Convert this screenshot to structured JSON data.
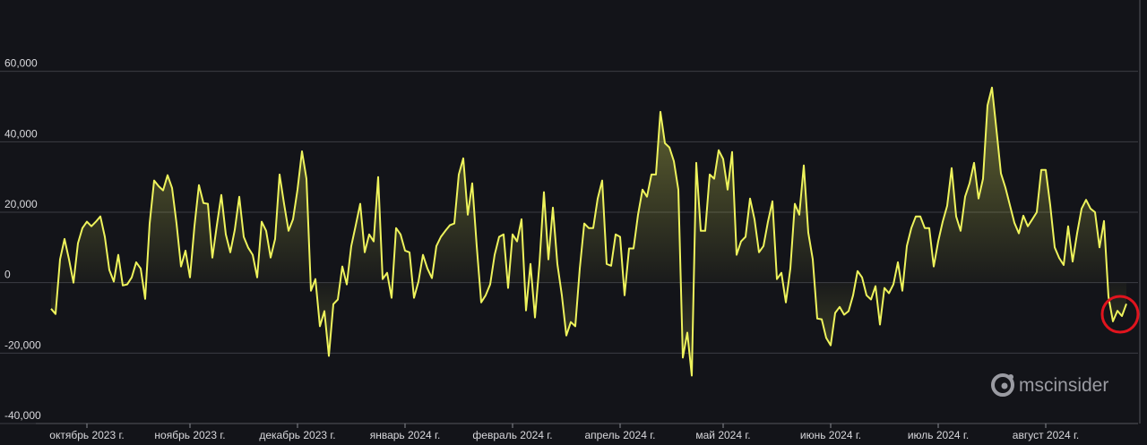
{
  "chart_data": {
    "type": "line",
    "watermark": "mscinsider",
    "color": "#eef35c",
    "grid": true,
    "ylim": [
      -40000,
      80000
    ],
    "yticks": [
      {
        "value": -40000,
        "label": "-40,000"
      },
      {
        "value": -20000,
        "label": "-20,000"
      },
      0,
      {
        "value": 20000,
        "label": "20,000"
      },
      {
        "value": 40000,
        "label": "40,000"
      },
      {
        "value": 60000,
        "label": "60,000"
      }
    ],
    "categories": [
      null,
      null,
      null,
      null,
      null,
      null,
      null,
      null,
      "октябрь 2023 г.",
      null,
      null,
      null,
      null,
      null,
      null,
      null,
      null,
      null,
      null,
      null,
      null,
      null,
      null,
      null,
      null,
      null,
      null,
      null,
      null,
      null,
      null,
      "ноябрь 2023 г.",
      null,
      null,
      null,
      null,
      null,
      null,
      null,
      null,
      null,
      null,
      null,
      null,
      null,
      null,
      null,
      null,
      null,
      null,
      null,
      null,
      null,
      null,
      null,
      "декабрь 2023 г.",
      null,
      null,
      null,
      null,
      null,
      null,
      null,
      null,
      null,
      null,
      null,
      null,
      null,
      null,
      null,
      null,
      null,
      null,
      null,
      null,
      null,
      null,
      null,
      "январь 2024 г.",
      null,
      null,
      null,
      null,
      null,
      null,
      null,
      null,
      null,
      null,
      null,
      null,
      null,
      null,
      null,
      null,
      null,
      null,
      null,
      null,
      null,
      null,
      null,
      "февраль 2024 г.",
      null,
      null,
      null,
      null,
      null,
      null,
      null,
      null,
      null,
      null,
      null,
      null,
      null,
      null,
      null,
      null,
      null,
      null,
      null,
      null,
      null,
      null,
      null,
      "апрель 2024 г.",
      null,
      null,
      null,
      null,
      null,
      null,
      null,
      null,
      null,
      null,
      null,
      null,
      null,
      null,
      null,
      null,
      null,
      null,
      null,
      null,
      null,
      null,
      "май 2024 г.",
      null,
      null,
      null,
      null,
      null,
      null,
      null,
      null,
      null,
      null,
      null,
      null,
      null,
      null,
      null,
      null,
      null,
      null,
      null,
      null,
      null,
      null,
      null,
      "июнь 2024 г.",
      null,
      null,
      null,
      null,
      null,
      null,
      null,
      null,
      null,
      null,
      null,
      null,
      null,
      null,
      null,
      null,
      null,
      null,
      null,
      null,
      null,
      null,
      null,
      "июль 2024 г.",
      null,
      null,
      null,
      null,
      null,
      null,
      null,
      null,
      null,
      null,
      null,
      null,
      null,
      null,
      null,
      null,
      null,
      null,
      null,
      null,
      null,
      null,
      null,
      "август 2024 г.",
      null,
      null,
      null,
      null,
      null,
      null,
      null,
      null,
      null,
      null,
      null,
      null,
      null,
      null,
      null,
      null,
      null,
      null
    ],
    "values": [
      -7400,
      -8900,
      6600,
      12400,
      6600,
      0,
      11200,
      15500,
      17300,
      16000,
      17300,
      18800,
      13000,
      3600,
      300,
      7900,
      -800,
      -500,
      1500,
      5800,
      4000,
      -4600,
      16800,
      29000,
      27400,
      26200,
      30500,
      26900,
      16800,
      4600,
      9100,
      1500,
      16000,
      27700,
      22600,
      22400,
      7100,
      16300,
      24900,
      13700,
      8600,
      15000,
      24400,
      13000,
      9900,
      7900,
      1500,
      17300,
      14700,
      7100,
      12400,
      30700,
      22400,
      14700,
      18000,
      26400,
      37300,
      29500,
      -2300,
      1000,
      -12400,
      -8100,
      -20800,
      -6100,
      -4800,
      4600,
      -500,
      10400,
      16300,
      22400,
      8600,
      13700,
      11700,
      30000,
      1000,
      2800,
      -4300,
      15500,
      13700,
      9100,
      8600,
      -4300,
      300,
      7900,
      4000,
      1300,
      10400,
      13000,
      14700,
      16300,
      16800,
      30700,
      35300,
      19300,
      28200,
      10400,
      -5600,
      -3600,
      -500,
      7900,
      13000,
      13700,
      -1500,
      13700,
      11700,
      18000,
      -7900,
      5300,
      -9900,
      5300,
      25700,
      6600,
      21300,
      5300,
      -3600,
      -15000,
      -11200,
      -12400,
      4000,
      16800,
      15500,
      15500,
      23900,
      29000,
      5300,
      4800,
      13700,
      13000,
      -3600,
      9700,
      9700,
      19300,
      26400,
      24400,
      30700,
      30700,
      48500,
      39600,
      38400,
      34500,
      26400,
      -21300,
      -14200,
      -26400,
      34000,
      14700,
      14700,
      30700,
      29500,
      37600,
      35100,
      26400,
      37100,
      7900,
      11700,
      13000,
      23900,
      18000,
      8600,
      10400,
      17300,
      23100,
      1000,
      2800,
      -5600,
      4000,
      22400,
      19300,
      33300,
      14200,
      6600,
      -10200,
      -10400,
      -15700,
      -17800,
      -8600,
      -6900,
      -9100,
      -8100,
      -3600,
      3300,
      1500,
      -3600,
      -4800,
      -1000,
      -11900,
      -1500,
      -3000,
      -500,
      5800,
      -2300,
      10400,
      15500,
      18800,
      18800,
      15500,
      15500,
      4600,
      11700,
      17300,
      21800,
      32500,
      18800,
      14700,
      24400,
      28200,
      34000,
      23900,
      29500,
      50300,
      55400,
      43400,
      31000,
      27000,
      22000,
      17000,
      14000,
      19000,
      16000,
      18000,
      20000,
      32000,
      32000,
      22000,
      10000,
      7000,
      5000,
      16000,
      6000,
      14000,
      21000,
      23500,
      21000,
      20000,
      10000,
      17500,
      -4000,
      -11000,
      -8000,
      -9500,
      -6000
    ]
  }
}
